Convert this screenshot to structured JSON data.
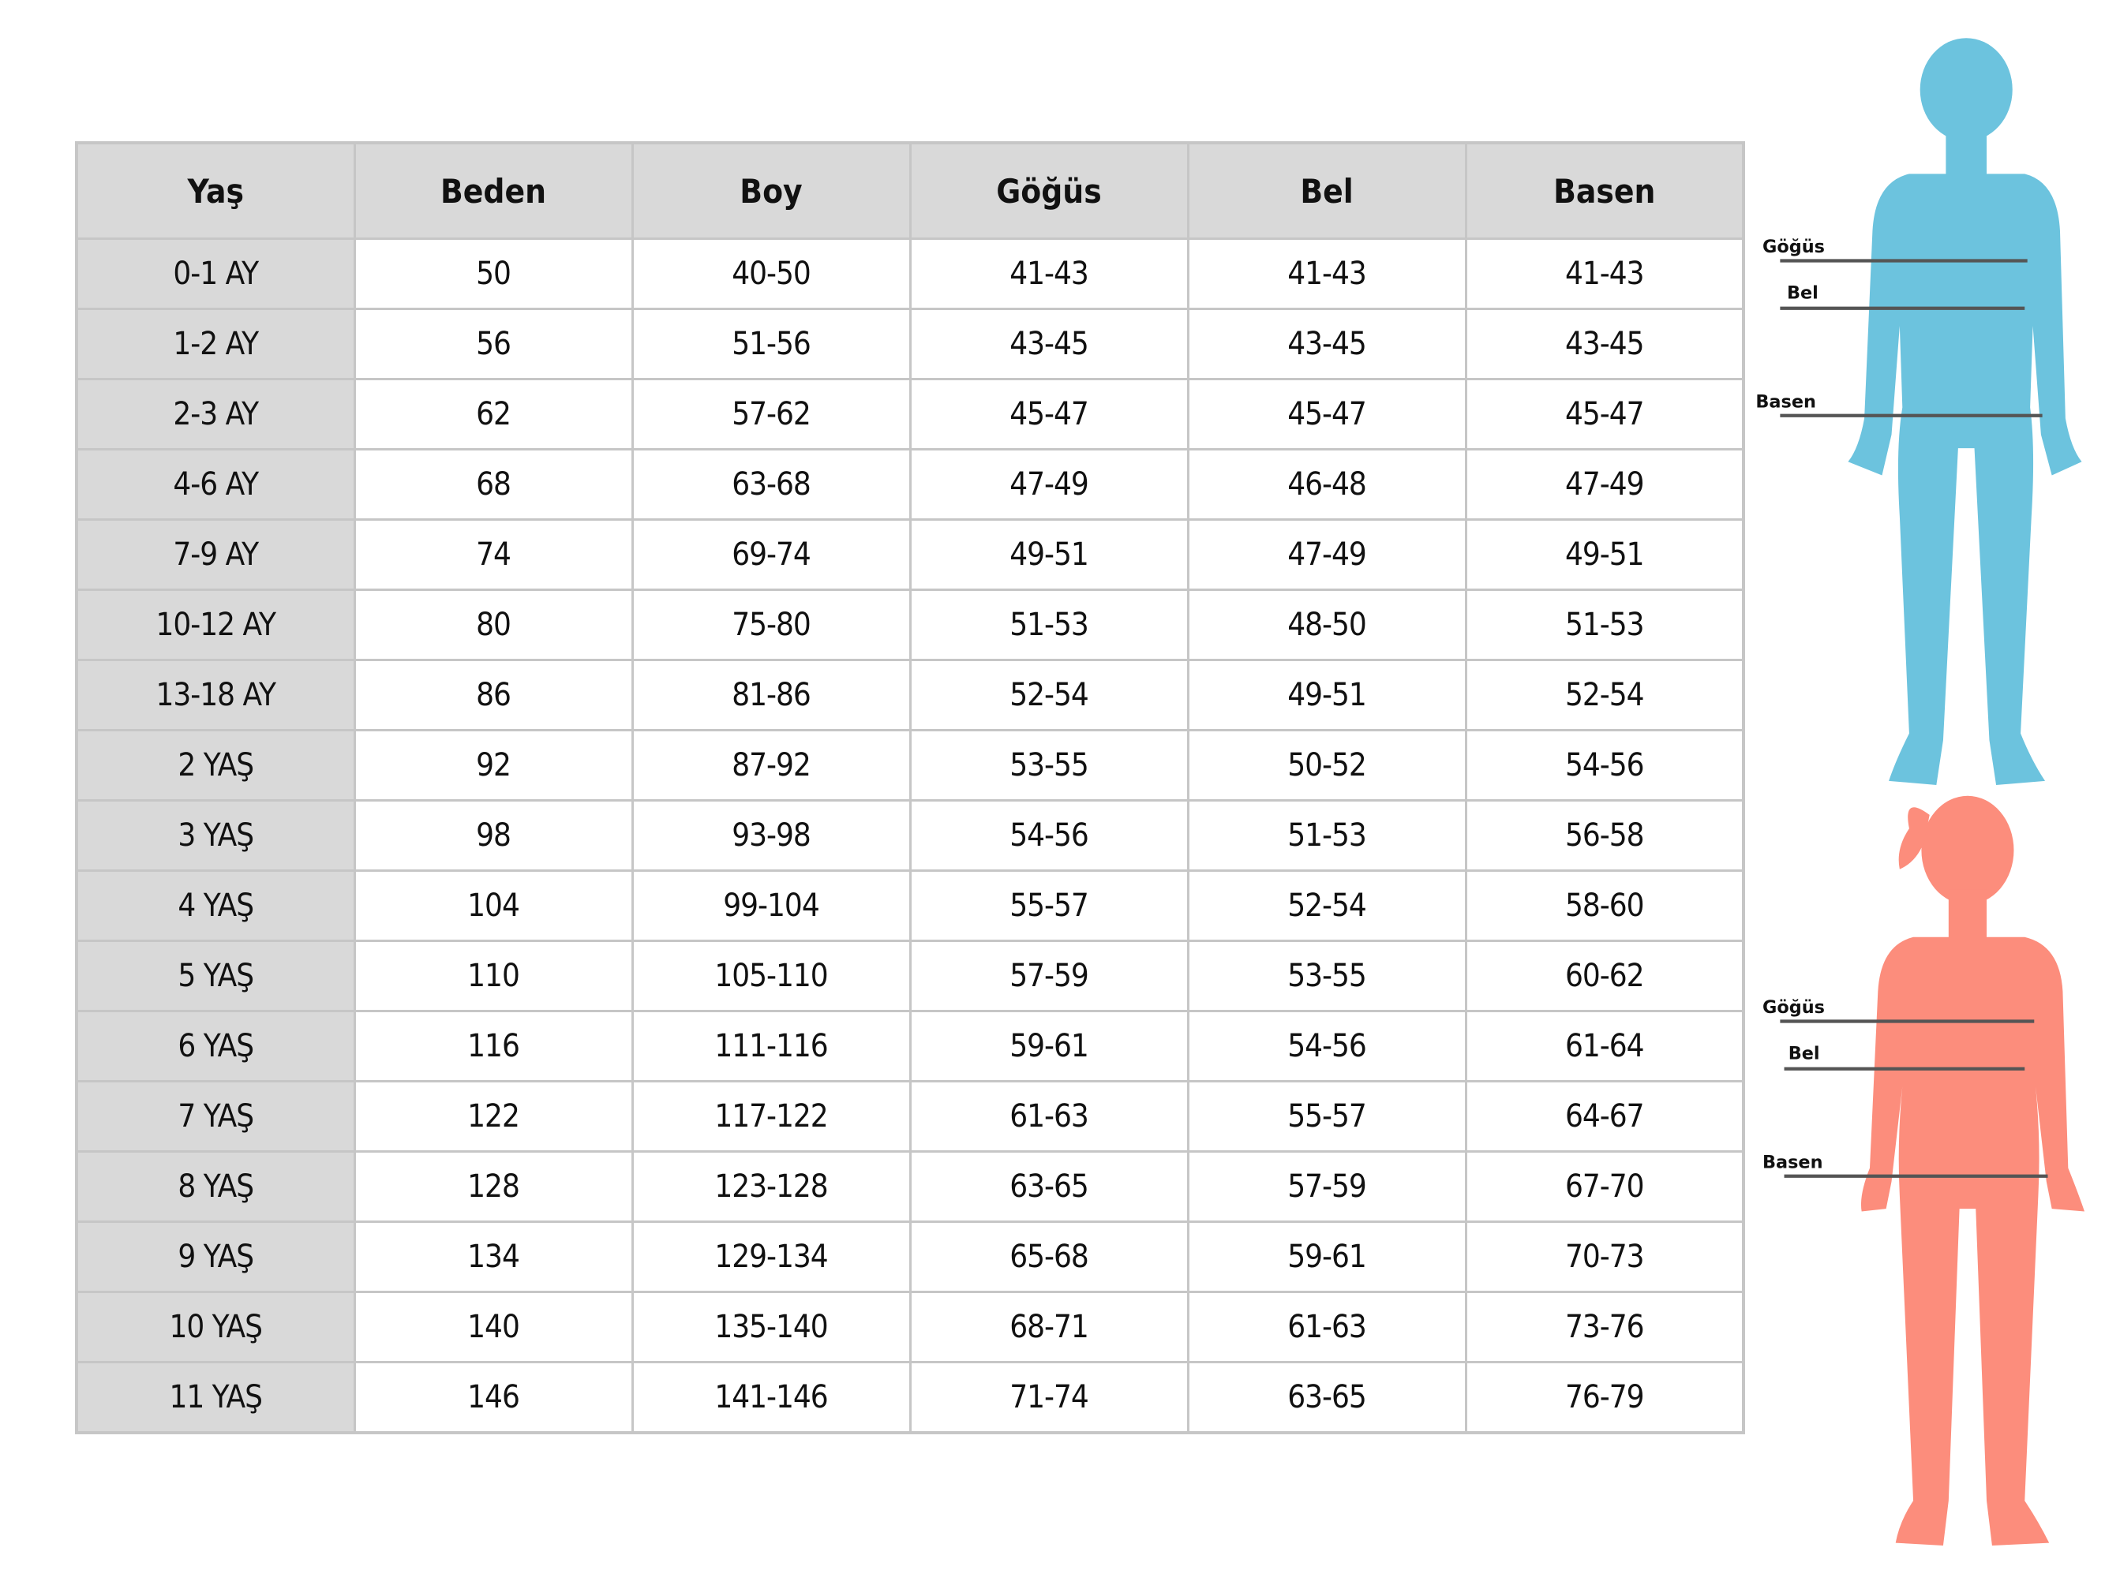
{
  "table": {
    "headers": [
      "Yaş",
      "Beden",
      "Boy",
      "Göğüs",
      "Bel",
      "Basen"
    ],
    "rows": [
      [
        "0-1 AY",
        "50",
        "40-50",
        "41-43",
        "41-43",
        "41-43"
      ],
      [
        "1-2 AY",
        "56",
        "51-56",
        "43-45",
        "43-45",
        "43-45"
      ],
      [
        "2-3 AY",
        "62",
        "57-62",
        "45-47",
        "45-47",
        "45-47"
      ],
      [
        "4-6 AY",
        "68",
        "63-68",
        "47-49",
        "46-48",
        "47-49"
      ],
      [
        "7-9 AY",
        "74",
        "69-74",
        "49-51",
        "47-49",
        "49-51"
      ],
      [
        "10-12 AY",
        "80",
        "75-80",
        "51-53",
        "48-50",
        "51-53"
      ],
      [
        "13-18 AY",
        "86",
        "81-86",
        "52-54",
        "49-51",
        "52-54"
      ],
      [
        "2 YAŞ",
        "92",
        "87-92",
        "53-55",
        "50-52",
        "54-56"
      ],
      [
        "3 YAŞ",
        "98",
        "93-98",
        "54-56",
        "51-53",
        "56-58"
      ],
      [
        "4 YAŞ",
        "104",
        "99-104",
        "55-57",
        "52-54",
        "58-60"
      ],
      [
        "5 YAŞ",
        "110",
        "105-110",
        "57-59",
        "53-55",
        "60-62"
      ],
      [
        "6 YAŞ",
        "116",
        "111-116",
        "59-61",
        "54-56",
        "61-64"
      ],
      [
        "7 YAŞ",
        "122",
        "117-122",
        "61-63",
        "55-57",
        "64-67"
      ],
      [
        "8 YAŞ",
        "128",
        "123-128",
        "63-65",
        "57-59",
        "67-70"
      ],
      [
        "9 YAŞ",
        "134",
        "129-134",
        "65-68",
        "59-61",
        "70-73"
      ],
      [
        "10 YAŞ",
        "140",
        "135-140",
        "68-71",
        "61-63",
        "73-76"
      ],
      [
        "11 YAŞ",
        "146",
        "141-146",
        "71-74",
        "63-65",
        "76-79"
      ]
    ]
  },
  "figures": {
    "boy": {
      "color": "#6cc3de",
      "labels": {
        "chest": "Göğüs",
        "waist": "Bel",
        "hip": "Basen"
      }
    },
    "girl": {
      "color": "#fc8d7c",
      "labels": {
        "chest": "Göğüs",
        "waist": "Bel",
        "hip": "Basen"
      }
    },
    "line_color": "#555555"
  }
}
